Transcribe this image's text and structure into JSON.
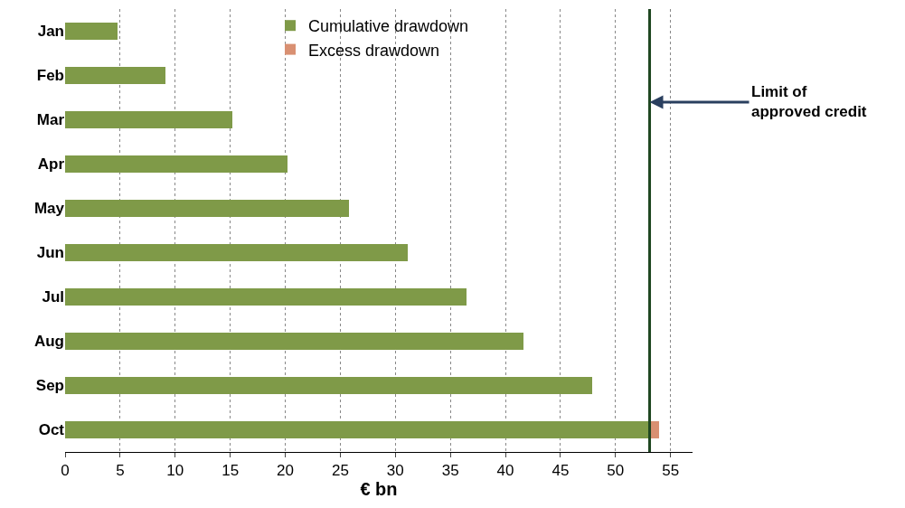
{
  "chart_data": {
    "type": "bar",
    "orientation": "horizontal",
    "stacked": true,
    "xlabel": "€ bn",
    "categories": [
      "Jan",
      "Feb",
      "Mar",
      "Apr",
      "May",
      "Jun",
      "Jul",
      "Aug",
      "Sep",
      "Oct"
    ],
    "series": [
      {
        "name": "Cumulative drawdown",
        "color": "#7f9a48",
        "values": [
          4.8,
          9.1,
          15.2,
          20.2,
          25.8,
          31.1,
          36.5,
          41.6,
          47.9,
          53.1
        ]
      },
      {
        "name": "Excess drawdown",
        "color": "#d99072",
        "values": [
          null,
          null,
          null,
          null,
          null,
          null,
          null,
          null,
          null,
          0.9
        ]
      }
    ],
    "xlim": [
      0,
      57
    ],
    "xticks": [
      0,
      5,
      10,
      15,
      20,
      25,
      30,
      35,
      40,
      45,
      50,
      55
    ],
    "grid": "x",
    "legend": "top",
    "ref_lines": [
      {
        "axis": "x",
        "value": 53.1,
        "color": "#1e4620",
        "line_style": "solid"
      }
    ],
    "annotations": [
      {
        "text": "Limit of approved credit",
        "x": 53.1
      }
    ]
  }
}
